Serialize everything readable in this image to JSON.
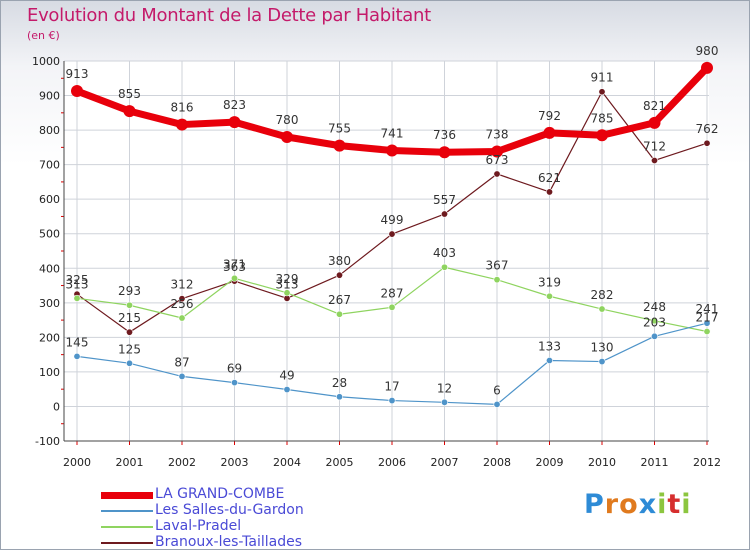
{
  "header": {
    "title": "Evolution du Montant de la Dette par Habitant",
    "unit": "(en €)"
  },
  "brand": {
    "letters": [
      "P",
      "r",
      "o",
      "x",
      "i",
      "t",
      "i"
    ],
    "colors": [
      "#2e8bd6",
      "#e07a1e",
      "#e07a1e",
      "#2e8bd6",
      "#8cc63f",
      "#d62e2e",
      "#8cc63f"
    ]
  },
  "chart_data": {
    "type": "line",
    "title": "Evolution du Montant de la Dette par Habitant",
    "ylabel": "(en €)",
    "xlabel": "",
    "x": [
      "2000",
      "2001",
      "2002",
      "2003",
      "2004",
      "2005",
      "2006",
      "2007",
      "2008",
      "2009",
      "2010",
      "2011",
      "2012"
    ],
    "ylim": [
      -100,
      1000
    ],
    "yticks": [
      "-100",
      "0",
      "100",
      "200",
      "300",
      "400",
      "500",
      "600",
      "700",
      "800",
      "900",
      "1000"
    ],
    "grid": true,
    "legend_position": "bottom-left",
    "series": [
      {
        "name": "LA GRAND-COMBE",
        "color": "#e8000b",
        "values": [
          913,
          855,
          816,
          823,
          780,
          755,
          741,
          736,
          738,
          792,
          785,
          821,
          980
        ]
      },
      {
        "name": "Les Salles-du-Gardon",
        "color": "#4f94c9",
        "values": [
          145,
          125,
          87,
          69,
          49,
          28,
          17,
          12,
          6,
          133,
          130,
          203,
          241
        ]
      },
      {
        "name": "Laval-Pradel",
        "color": "#8fd460",
        "values": [
          313,
          293,
          256,
          371,
          329,
          267,
          287,
          403,
          367,
          319,
          282,
          248,
          217
        ]
      },
      {
        "name": "Branoux-les-Taillades",
        "color": "#6e1a1f",
        "values": [
          325,
          215,
          312,
          363,
          313,
          380,
          499,
          557,
          673,
          621,
          911,
          712,
          762
        ]
      }
    ]
  }
}
